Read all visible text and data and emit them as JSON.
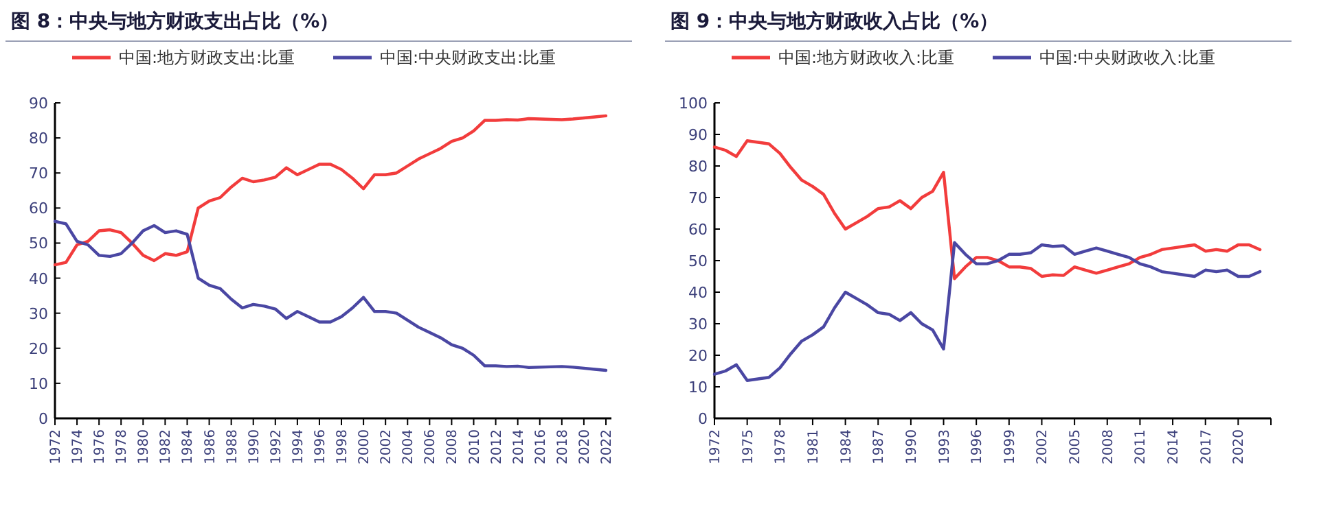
{
  "chart_data": [
    {
      "type": "line",
      "title": "图 8：中央与地方财政支出占比（%）",
      "legend": "top",
      "x": [
        1972,
        1973,
        1974,
        1975,
        1976,
        1977,
        1978,
        1979,
        1980,
        1981,
        1982,
        1983,
        1984,
        1985,
        1986,
        1987,
        1988,
        1989,
        1990,
        1991,
        1992,
        1993,
        1994,
        1995,
        1996,
        1997,
        1998,
        1999,
        2000,
        2001,
        2002,
        2003,
        2004,
        2005,
        2006,
        2007,
        2008,
        2009,
        2010,
        2011,
        2012,
        2013,
        2014,
        2015,
        2016,
        2017,
        2018,
        2019,
        2020,
        2021,
        2022
      ],
      "series": [
        {
          "name": "中国:地方财政支出:比重",
          "color": "#f23c3c",
          "values": [
            43.8,
            44.5,
            49.5,
            50.5,
            53.5,
            53.8,
            53,
            50,
            46.5,
            45,
            47,
            46.5,
            47.5,
            60,
            62,
            63,
            66,
            68.5,
            67.5,
            68,
            68.8,
            71.5,
            69.5,
            71,
            72.5,
            72.5,
            71,
            68.5,
            65.5,
            69.5,
            69.5,
            70,
            72,
            74,
            75.5,
            77,
            79,
            80,
            82,
            85,
            85,
            85.2,
            85.1,
            85.5,
            85.4,
            85.3,
            85.2,
            85.4,
            85.7,
            86,
            86.3
          ]
        },
        {
          "name": "中国:中央财政支出:比重",
          "color": "#4a47a3",
          "values": [
            56.2,
            55.5,
            50.5,
            49.5,
            46.5,
            46.2,
            47,
            50,
            53.5,
            55,
            53,
            53.5,
            52.5,
            40,
            38,
            37,
            34,
            31.5,
            32.5,
            32,
            31.2,
            28.5,
            30.5,
            29,
            27.5,
            27.5,
            29,
            31.5,
            34.5,
            30.5,
            30.5,
            30,
            28,
            26,
            24.5,
            23,
            21,
            20,
            18,
            15,
            15,
            14.8,
            14.9,
            14.5,
            14.6,
            14.7,
            14.8,
            14.6,
            14.3,
            14,
            13.7
          ]
        }
      ],
      "xlim": [
        1972,
        2022.5
      ],
      "ylim": [
        0,
        90
      ],
      "xticks": [
        1972,
        1974,
        1976,
        1978,
        1980,
        1982,
        1984,
        1986,
        1988,
        1990,
        1992,
        1994,
        1996,
        1998,
        2000,
        2002,
        2004,
        2006,
        2008,
        2010,
        2012,
        2014,
        2016,
        2018,
        2020,
        2022
      ],
      "yticks": [
        0,
        10,
        20,
        30,
        40,
        50,
        60,
        70,
        80,
        90
      ]
    },
    {
      "type": "line",
      "title": "图 9：中央与地方财政收入占比（%）",
      "legend": "top",
      "x": [
        1972,
        1973,
        1974,
        1975,
        1976,
        1977,
        1978,
        1979,
        1980,
        1981,
        1982,
        1983,
        1984,
        1985,
        1986,
        1987,
        1988,
        1989,
        1990,
        1991,
        1992,
        1993,
        1994,
        1995,
        1996,
        1997,
        1998,
        1999,
        2000,
        2001,
        2002,
        2003,
        2004,
        2005,
        2006,
        2007,
        2008,
        2009,
        2010,
        2011,
        2012,
        2013,
        2014,
        2015,
        2016,
        2017,
        2018,
        2019,
        2020,
        2021,
        2022
      ],
      "series": [
        {
          "name": "中国:地方财政收入:比重",
          "color": "#f23c3c",
          "values": [
            86,
            85,
            83,
            88,
            87.5,
            87,
            84,
            79.5,
            75.5,
            73.5,
            71,
            65,
            60,
            62,
            64,
            66.5,
            67,
            69,
            66.5,
            70,
            72,
            78,
            44.3,
            48,
            51,
            51,
            50,
            48,
            48,
            47.5,
            45,
            45.5,
            45.3,
            48,
            47,
            46,
            47,
            48,
            49,
            51,
            52,
            53.5,
            54,
            54.5,
            55,
            53,
            53.5,
            53,
            55,
            55,
            53.5
          ]
        },
        {
          "name": "中国:中央财政收入:比重",
          "color": "#4a47a3",
          "values": [
            14,
            15,
            17,
            12,
            12.5,
            13,
            16,
            20.5,
            24.5,
            26.5,
            29,
            35,
            40,
            38,
            36,
            33.5,
            33,
            31,
            33.5,
            30,
            28,
            22,
            55.7,
            52,
            49,
            49,
            50,
            52,
            52,
            52.5,
            55,
            54.5,
            54.7,
            52,
            53,
            54,
            53,
            52,
            51,
            49,
            48,
            46.5,
            46,
            45.5,
            45,
            47,
            46.5,
            47,
            45,
            45,
            46.5
          ]
        }
      ],
      "xlim": [
        1972,
        2023
      ],
      "ylim": [
        0,
        100
      ],
      "xticks": [
        1972,
        1975,
        1978,
        1981,
        1984,
        1987,
        1990,
        1993,
        1996,
        1999,
        2002,
        2005,
        2008,
        2011,
        2014,
        2017,
        2020,
        {
          "value": 2023,
          "label": null
        }
      ],
      "yticks": [
        0,
        10,
        20,
        30,
        40,
        50,
        60,
        70,
        80,
        90,
        100
      ]
    }
  ]
}
